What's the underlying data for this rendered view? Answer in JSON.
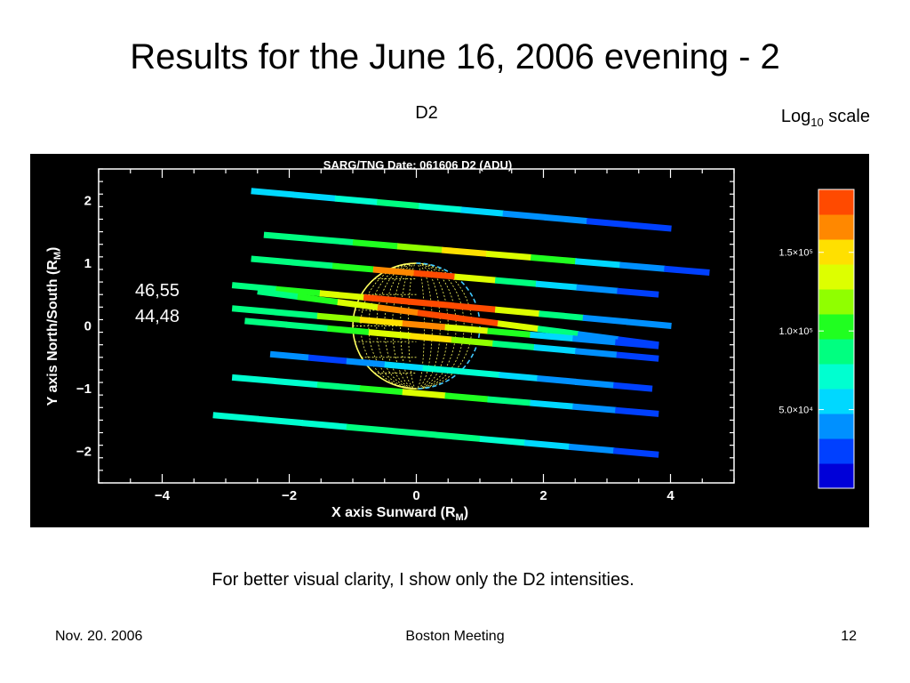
{
  "slide": {
    "title": "Results for the June 16, 2006 evening - 2",
    "panel_label": "D2",
    "scale_note_base": "Log",
    "scale_note_sub": "10",
    "scale_note_rest": " scale",
    "caption": "For better visual clarity, I show only the D2 intensities."
  },
  "footer": {
    "date": "Nov. 20. 2006",
    "event": "Boston Meeting",
    "page": "12"
  },
  "chart_data": {
    "type": "scatter",
    "title": "SARG/TNG Date: 061606 D2 (ADU)",
    "xlabel": "X axis Sunward (R",
    "xlabel_sub": "M",
    "ylabel": "Y axis North/South (R",
    "ylabel_sub": "M",
    "xlim": [
      -5,
      5
    ],
    "ylim": [
      -2.5,
      2.5
    ],
    "xticks": [
      -4,
      -2,
      0,
      2,
      4
    ],
    "yticks": [
      2,
      1,
      0,
      -1,
      -2
    ],
    "xtick_labels": [
      "−4",
      "−2",
      "0",
      "2",
      "4"
    ],
    "ytick_labels": [
      "2",
      "1",
      "0",
      "−1",
      "−2"
    ],
    "annotations": [
      "46,55",
      "44,48"
    ],
    "planet_center": [
      0,
      0
    ],
    "planet_radius": 1,
    "colorbar": {
      "min": 0,
      "max": 190000,
      "ticks": [
        150000,
        100000,
        50000
      ],
      "tick_labels": [
        "1.5×10⁵",
        "1.0×10⁵",
        "5.0×10⁴"
      ],
      "colors": [
        "#0000d8",
        "#0040ff",
        "#0090ff",
        "#00d8ff",
        "#00ffd0",
        "#00ff80",
        "#20ff20",
        "#90ff00",
        "#ddff00",
        "#ffe000",
        "#ff8800",
        "#ff4a00"
      ]
    },
    "slits": [
      {
        "x_start": -2.6,
        "y_start": 2.15,
        "x_end": 4.0,
        "y_end": 1.55,
        "values": [
          60000,
          62000,
          70000,
          80000,
          65000,
          55000,
          45000,
          40000,
          30000,
          25000
        ]
      },
      {
        "x_start": -2.4,
        "y_start": 1.45,
        "x_end": 4.6,
        "y_end": 0.85,
        "values": [
          80000,
          90000,
          100000,
          120000,
          150000,
          130000,
          100000,
          60000,
          40000,
          30000
        ]
      },
      {
        "x_start": -2.6,
        "y_start": 1.07,
        "x_end": 3.8,
        "y_end": 0.5,
        "values": [
          80000,
          90000,
          110000,
          160000,
          175000,
          140000,
          90000,
          60000,
          40000,
          30000
        ]
      },
      {
        "x_start": -2.9,
        "y_start": 0.65,
        "x_end": 4.0,
        "y_end": 0.0,
        "values": [
          90000,
          110000,
          140000,
          175000,
          185000,
          175000,
          140000,
          80000,
          45000,
          35000
        ]
      },
      {
        "x_start": -2.5,
        "y_start": 0.55,
        "x_end": 3.8,
        "y_end": -0.3,
        "values": [
          85000,
          100000,
          130000,
          170000,
          185000,
          180000,
          140000,
          80000,
          45000,
          30000
        ]
      },
      {
        "x_start": -2.9,
        "y_start": 0.28,
        "x_end": 3.8,
        "y_end": -0.32,
        "values": [
          80000,
          90000,
          120000,
          150000,
          165000,
          140000,
          100000,
          60000,
          40000,
          30000
        ]
      },
      {
        "x_start": -2.7,
        "y_start": 0.08,
        "x_end": 3.8,
        "y_end": -0.52,
        "values": [
          80000,
          90000,
          110000,
          140000,
          150000,
          120000,
          90000,
          60000,
          40000,
          30000
        ]
      },
      {
        "x_start": -2.3,
        "y_start": -0.45,
        "x_end": 3.7,
        "y_end": -1.0,
        "values": [
          35000,
          30000,
          45000,
          60000,
          70000,
          65000,
          55000,
          45000,
          35000,
          25000
        ]
      },
      {
        "x_start": -2.9,
        "y_start": -0.82,
        "x_end": 3.8,
        "y_end": -1.4,
        "values": [
          70000,
          75000,
          85000,
          100000,
          130000,
          110000,
          80000,
          55000,
          40000,
          30000
        ]
      },
      {
        "x_start": -3.2,
        "y_start": -1.42,
        "x_end": 3.8,
        "y_end": -2.05,
        "values": [
          65000,
          70000,
          75000,
          80000,
          85000,
          80000,
          70000,
          60000,
          45000,
          30000
        ]
      }
    ]
  }
}
